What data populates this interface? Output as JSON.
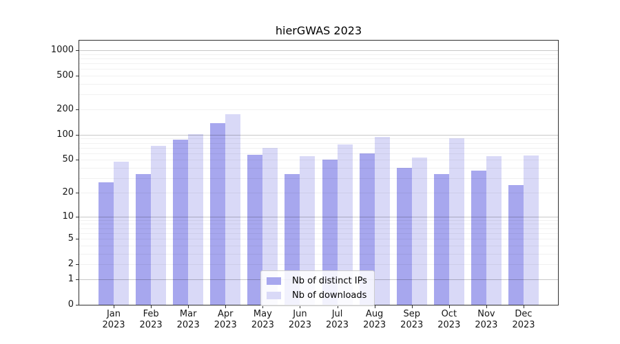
{
  "title": "hierGWAS 2023",
  "chart_data": {
    "type": "bar",
    "title": "hierGWAS 2023",
    "categories": [
      "Jan 2023",
      "Feb 2023",
      "Mar 2023",
      "Apr 2023",
      "May 2023",
      "Jun 2023",
      "Jul 2023",
      "Aug 2023",
      "Sep 2023",
      "Oct 2023",
      "Nov 2023",
      "Dec 2023"
    ],
    "series": [
      {
        "name": "Nb of distinct IPs",
        "color": "#a7a7ee",
        "values": [
          27,
          34,
          88,
          136,
          58,
          34,
          50,
          60,
          40,
          34,
          37,
          25
        ]
      },
      {
        "name": "Nb of downloads",
        "color": "#d9d9f7",
        "values": [
          48,
          74,
          101,
          176,
          69,
          55,
          76,
          94,
          53,
          90,
          55,
          56
        ]
      }
    ],
    "yticks": [
      0,
      1,
      2,
      5,
      10,
      20,
      50,
      100,
      200,
      500,
      1000
    ],
    "ylim": [
      0,
      1296
    ],
    "yscale": "log10(value+1)",
    "grid": true,
    "legend_position": "inside-lower-center-right"
  },
  "colors": {
    "background": "#ffffff",
    "spine": "#2e2e2e",
    "bar_distinct_ips": "#a7a7ee",
    "bar_downloads": "#d9d9f7",
    "grid_major": "rgba(0,0,0,0.22)",
    "grid_minor": "rgba(0,0,0,0.055)",
    "legend_border": "#cccccc"
  }
}
